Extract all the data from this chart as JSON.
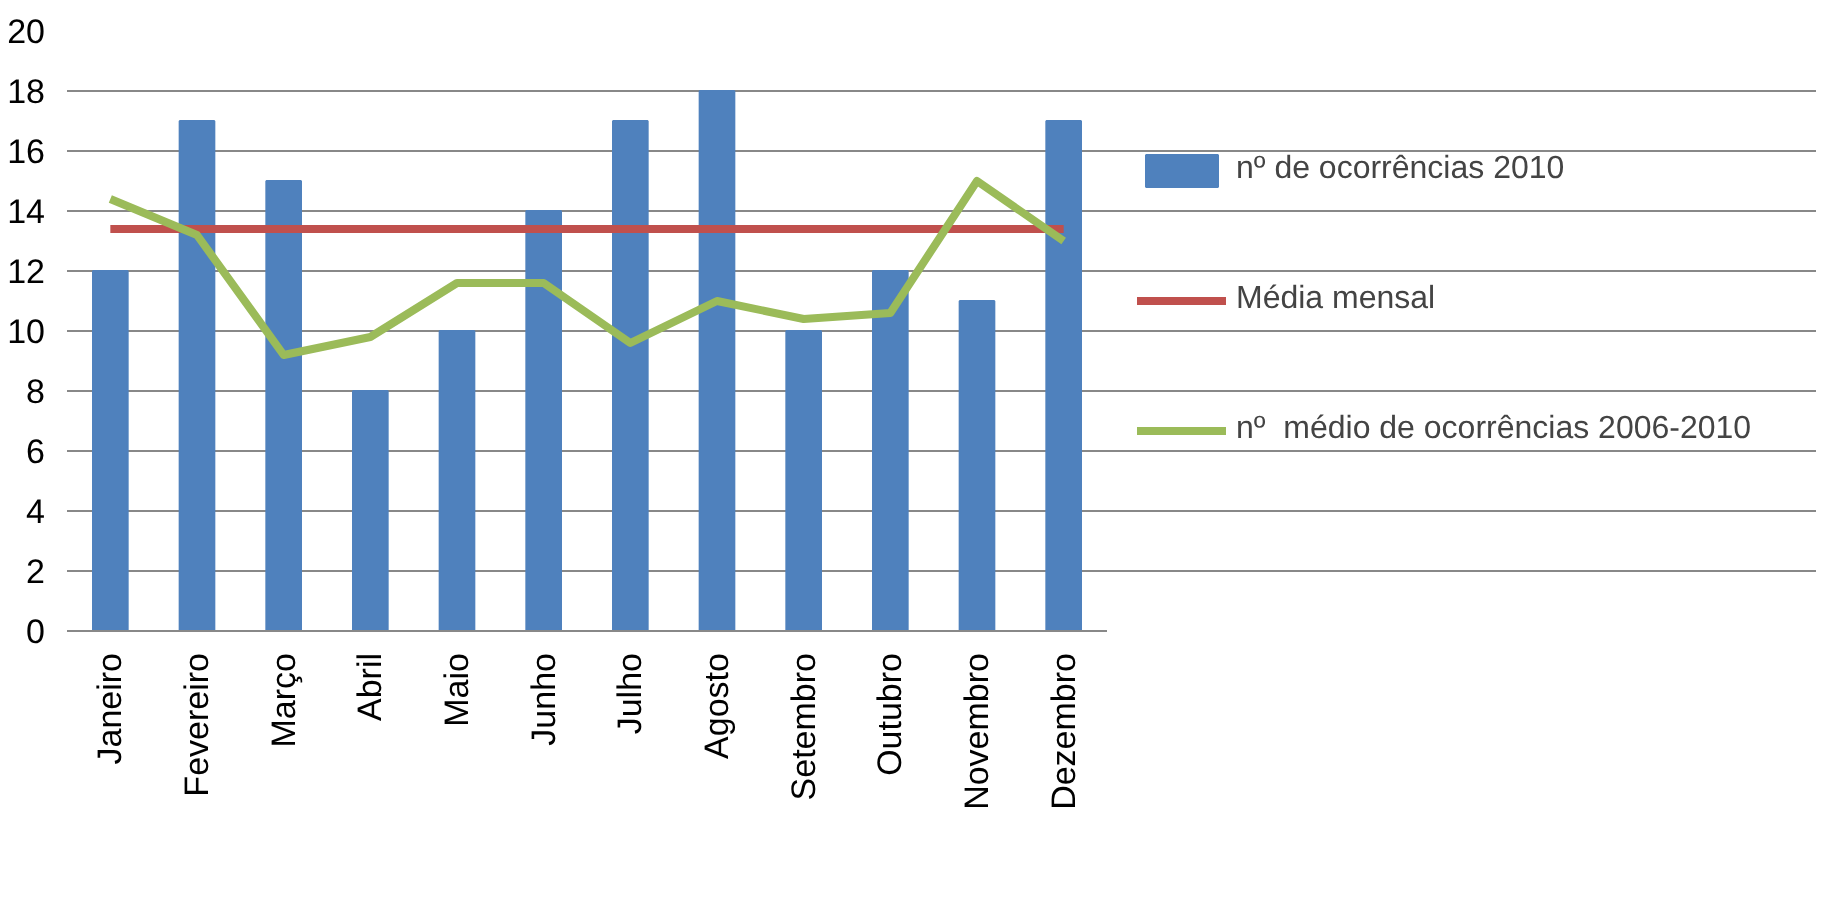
{
  "chart_data": {
    "type": "bar",
    "categories": [
      "Janeiro",
      "Fevereiro",
      "Março",
      "Abril",
      "Maio",
      "Junho",
      "Julho",
      "Agosto",
      "Setembro",
      "Outubro",
      "Novembro",
      "Dezembro"
    ],
    "series": [
      {
        "name": "nº de ocorrências 2010",
        "color": "#4f81bd",
        "values": [
          12,
          17,
          15,
          8,
          10,
          14,
          17,
          18,
          10,
          12,
          11,
          17
        ]
      },
      {
        "name": "Média mensal",
        "color": "#c0504d",
        "type": "line",
        "values": [
          13.4,
          13.4,
          13.4,
          13.4,
          13.4,
          13.4,
          13.4,
          13.4,
          13.4,
          13.4,
          13.4,
          13.4
        ]
      },
      {
        "name": "nº  médio de ocorrências 2006-2010",
        "color": "#9bbb59",
        "type": "line",
        "values": [
          14.4,
          13.2,
          9.2,
          9.8,
          11.6,
          11.6,
          9.6,
          11.0,
          10.4,
          10.6,
          15.0,
          13.0
        ]
      }
    ],
    "ylim": [
      0,
      20
    ],
    "yticks": [
      0,
      2,
      4,
      6,
      8,
      10,
      12,
      14,
      16,
      18,
      20
    ],
    "grid": "y",
    "legend": "right"
  }
}
